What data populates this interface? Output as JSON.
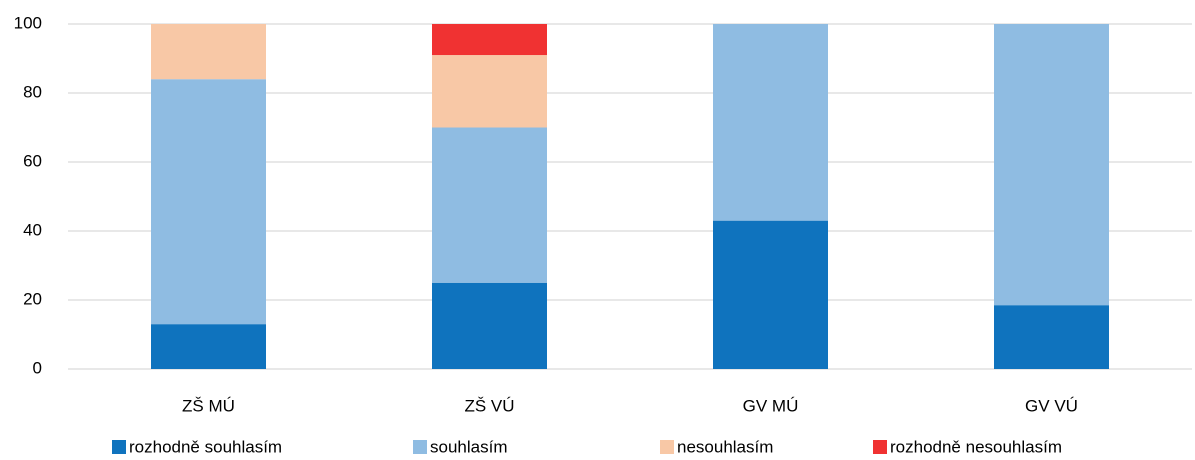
{
  "chart_data": {
    "type": "stacked_bar",
    "categories": [
      "ZŠ MÚ",
      "ZŠ VÚ",
      "GV MÚ",
      "GV VÚ"
    ],
    "series": [
      {
        "name": "rozhodně souhlasím",
        "color": "#0f73be",
        "values": [
          13,
          25,
          43,
          18.5
        ]
      },
      {
        "name": "souhlasím",
        "color": "#8fbce2",
        "values": [
          71,
          45,
          57,
          81.5
        ]
      },
      {
        "name": "nesouhlasím",
        "color": "#f8c8a6",
        "values": [
          16,
          21,
          0,
          0
        ]
      },
      {
        "name": "rozhodně nesouhlasím",
        "color": "#f03232",
        "values": [
          0,
          9,
          0,
          0
        ]
      }
    ],
    "ylim": [
      0,
      100
    ],
    "yticks": [
      0,
      20,
      40,
      60,
      80,
      100
    ],
    "grid": true,
    "legend": "bottom"
  }
}
